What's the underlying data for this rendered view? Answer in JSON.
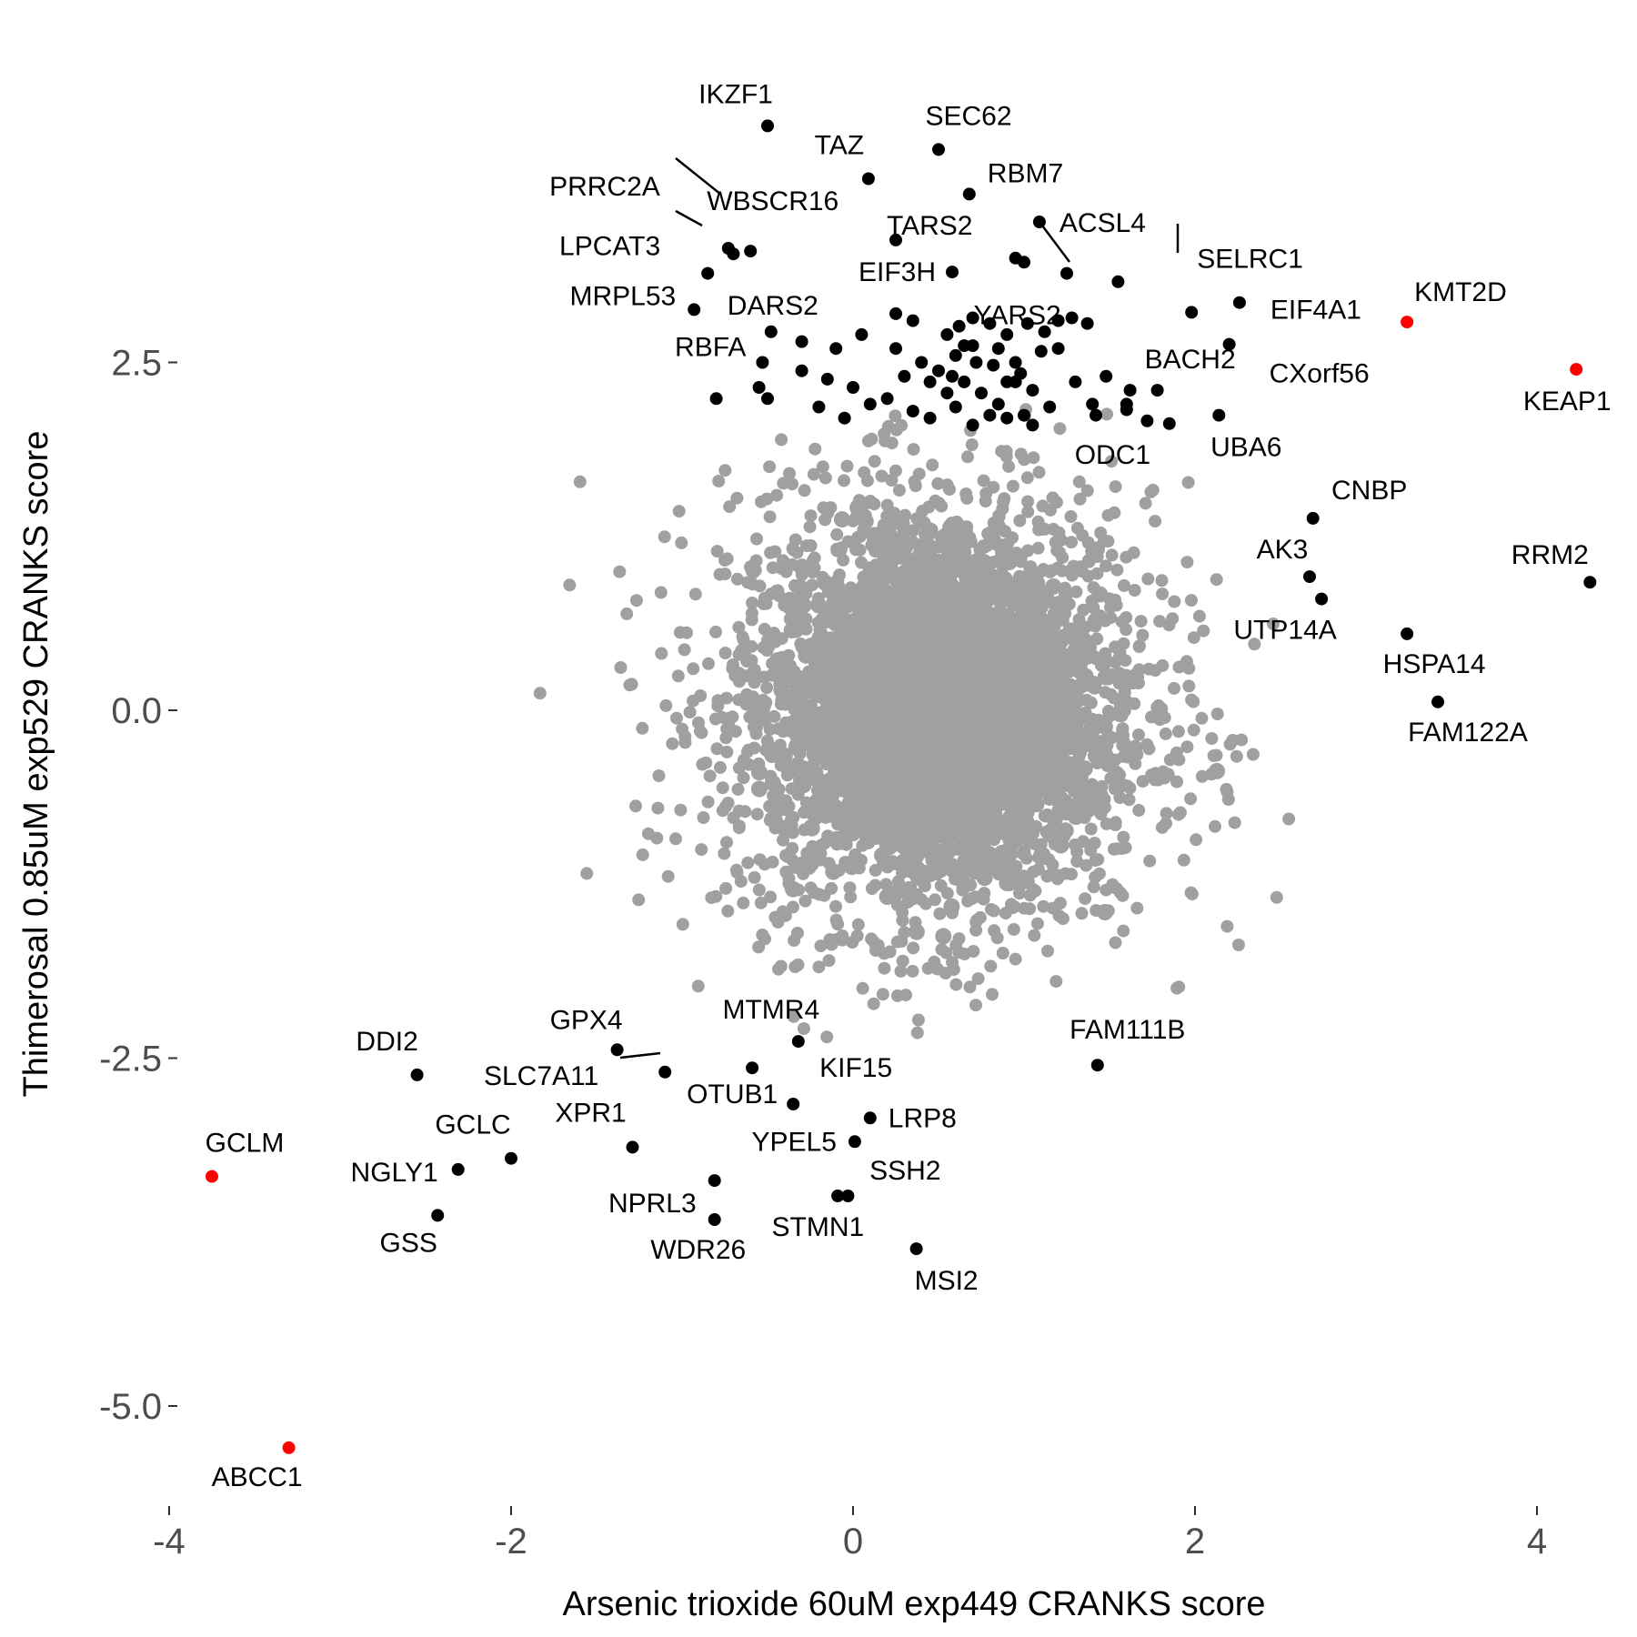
{
  "chart_data": {
    "type": "scatter",
    "xlabel": "Arsenic trioxide 60uM exp449 CRANKS score",
    "ylabel": "Thimerosal 0.85uM exp529 CRANKS score",
    "xlim": [
      -4.1,
      4.3
    ],
    "ylim": [
      -5.7,
      4.9
    ],
    "xticks": [
      {
        "value": -4,
        "label": "-4"
      },
      {
        "value": -2,
        "label": "-2"
      },
      {
        "value": 0,
        "label": "0"
      },
      {
        "value": 2,
        "label": "2"
      },
      {
        "value": 4,
        "label": "4"
      }
    ],
    "yticks": [
      {
        "value": 2.5,
        "label": "2.5"
      },
      {
        "value": 0,
        "label": "0.0"
      },
      {
        "value": -2.5,
        "label": "-2.5"
      },
      {
        "value": -5,
        "label": "-5.0"
      }
    ],
    "grid": false,
    "background_color": "#a0a0a0",
    "highlight_colors": {
      "default": "#000000",
      "red": "#ff0000"
    },
    "labeled_points": [
      {
        "label": "IKZF1",
        "x": -0.5,
        "y": 4.2,
        "color": "default"
      },
      {
        "label": "SEC62",
        "x": 0.5,
        "y": 4.03,
        "color": "default"
      },
      {
        "label": "TAZ",
        "x": 0.09,
        "y": 3.82,
        "color": "default"
      },
      {
        "label": "RBM7",
        "x": 0.68,
        "y": 3.71,
        "color": "default"
      },
      {
        "label": "PRRC2A",
        "x": -0.73,
        "y": 3.32,
        "color": "default"
      },
      {
        "label": "WBSCR16",
        "x": -0.6,
        "y": 3.3,
        "color": "default"
      },
      {
        "label": "ACSL4",
        "x": 1.09,
        "y": 3.51,
        "color": "default"
      },
      {
        "label": "TARS2",
        "x": 0.25,
        "y": 3.38,
        "color": "default"
      },
      {
        "label": "LPCAT3",
        "x": -0.85,
        "y": 3.14,
        "color": "default"
      },
      {
        "label": "SELRC1",
        "x": 1.98,
        "y": 2.86,
        "color": "default"
      },
      {
        "label": "EIF3H",
        "x": 0.58,
        "y": 3.15,
        "color": "default"
      },
      {
        "label": "YARS2",
        "x": 1.37,
        "y": 2.78,
        "color": "default"
      },
      {
        "label": "MRPL53",
        "x": -0.93,
        "y": 2.88,
        "color": "default"
      },
      {
        "label": "DARS2",
        "x": -0.48,
        "y": 2.72,
        "color": "default"
      },
      {
        "label": "EIF4A1",
        "x": 2.26,
        "y": 2.93,
        "color": "default"
      },
      {
        "label": "KMT2D",
        "x": 3.24,
        "y": 2.79,
        "color": "red"
      },
      {
        "label": "BACH2",
        "x": 1.78,
        "y": 2.3,
        "color": "default"
      },
      {
        "label": "CXorf56",
        "x": 2.2,
        "y": 2.63,
        "color": "default"
      },
      {
        "label": "RBFA",
        "x": -0.53,
        "y": 2.5,
        "color": "default"
      },
      {
        "label": "KEAP1",
        "x": 4.23,
        "y": 2.45,
        "color": "red"
      },
      {
        "label": "ODC1",
        "x": 1.72,
        "y": 2.08,
        "color": "default"
      },
      {
        "label": "UBA6",
        "x": 2.14,
        "y": 2.12,
        "color": "default"
      },
      {
        "label": "CNBP",
        "x": 2.69,
        "y": 1.38,
        "color": "default"
      },
      {
        "label": "AK3",
        "x": 2.67,
        "y": 0.96,
        "color": "default"
      },
      {
        "label": "RRM2",
        "x": 4.31,
        "y": 0.92,
        "color": "default"
      },
      {
        "label": "UTP14A",
        "x": 2.74,
        "y": 0.8,
        "color": "default"
      },
      {
        "label": "HSPA14",
        "x": 3.24,
        "y": 0.55,
        "color": "default"
      },
      {
        "label": "FAM122A",
        "x": 3.42,
        "y": 0.06,
        "color": "default"
      },
      {
        "label": "MTMR4",
        "x": -0.32,
        "y": -2.38,
        "color": "default"
      },
      {
        "label": "GPX4",
        "x": -1.38,
        "y": -2.44,
        "color": "default"
      },
      {
        "label": "FAM111B",
        "x": 1.43,
        "y": -2.55,
        "color": "default"
      },
      {
        "label": "DDI2",
        "x": -2.55,
        "y": -2.62,
        "color": "default"
      },
      {
        "label": "SLC7A11",
        "x": -1.1,
        "y": -2.6,
        "color": "default"
      },
      {
        "label": "KIF15",
        "x": -0.59,
        "y": -2.57,
        "color": "default"
      },
      {
        "label": "OTUB1",
        "x": -0.35,
        "y": -2.83,
        "color": "default"
      },
      {
        "label": "LRP8",
        "x": 0.1,
        "y": -2.93,
        "color": "default"
      },
      {
        "label": "GCLM",
        "x": -3.75,
        "y": -3.35,
        "color": "red"
      },
      {
        "label": "GCLC",
        "x": -2.0,
        "y": -3.22,
        "color": "default"
      },
      {
        "label": "XPR1",
        "x": -1.29,
        "y": -3.14,
        "color": "default"
      },
      {
        "label": "YPEL5",
        "x": 0.01,
        "y": -3.1,
        "color": "default"
      },
      {
        "label": "NGLY1",
        "x": -2.31,
        "y": -3.3,
        "color": "default"
      },
      {
        "label": "NPRL3",
        "x": -0.81,
        "y": -3.38,
        "color": "default"
      },
      {
        "label": "SSH2",
        "x": -0.09,
        "y": -3.49,
        "color": "default"
      },
      {
        "label": "GSS",
        "x": -2.43,
        "y": -3.63,
        "color": "default"
      },
      {
        "label": "WDR26",
        "x": -0.81,
        "y": -3.66,
        "color": "default"
      },
      {
        "label": "STMN1",
        "x": -0.03,
        "y": -3.49,
        "color": "default"
      },
      {
        "label": "MSI2",
        "x": 0.37,
        "y": -3.87,
        "color": "default"
      },
      {
        "label": "ABCC1",
        "x": -3.3,
        "y": -5.3,
        "color": "red"
      }
    ],
    "unlabeled_black_points": [
      [
        -0.7,
        3.28
      ],
      [
        0.95,
        3.25
      ],
      [
        1.0,
        3.22
      ],
      [
        1.25,
        3.14
      ],
      [
        1.55,
        3.08
      ],
      [
        0.25,
        2.85
      ],
      [
        0.35,
        2.8
      ],
      [
        0.55,
        2.7
      ],
      [
        0.62,
        2.76
      ],
      [
        0.7,
        2.82
      ],
      [
        0.8,
        2.78
      ],
      [
        0.9,
        2.7
      ],
      [
        1.02,
        2.78
      ],
      [
        1.12,
        2.72
      ],
      [
        1.2,
        2.8
      ],
      [
        1.28,
        2.82
      ],
      [
        -0.3,
        2.65
      ],
      [
        -0.1,
        2.6
      ],
      [
        0.05,
        2.7
      ],
      [
        0.25,
        2.6
      ],
      [
        0.4,
        2.5
      ],
      [
        0.5,
        2.44
      ],
      [
        0.6,
        2.55
      ],
      [
        0.7,
        2.62
      ],
      [
        0.82,
        2.48
      ],
      [
        0.9,
        2.36
      ],
      [
        0.98,
        2.42
      ],
      [
        1.1,
        2.58
      ],
      [
        1.2,
        2.6
      ],
      [
        -0.55,
        2.32
      ],
      [
        -0.3,
        2.44
      ],
      [
        -0.15,
        2.38
      ],
      [
        0.0,
        2.32
      ],
      [
        0.2,
        2.24
      ],
      [
        0.3,
        2.4
      ],
      [
        0.45,
        2.36
      ],
      [
        0.55,
        2.28
      ],
      [
        0.65,
        2.36
      ],
      [
        0.75,
        2.28
      ],
      [
        0.85,
        2.2
      ],
      [
        0.95,
        2.36
      ],
      [
        1.05,
        2.3
      ],
      [
        1.3,
        2.36
      ],
      [
        1.48,
        2.4
      ],
      [
        1.62,
        2.3
      ],
      [
        -0.8,
        2.24
      ],
      [
        -0.5,
        2.24
      ],
      [
        -0.2,
        2.18
      ],
      [
        0.1,
        2.2
      ],
      [
        0.35,
        2.15
      ],
      [
        0.6,
        2.18
      ],
      [
        0.8,
        2.12
      ],
      [
        1.0,
        2.12
      ],
      [
        1.15,
        2.18
      ],
      [
        1.4,
        2.2
      ],
      [
        1.6,
        2.16
      ],
      [
        -0.05,
        2.1
      ],
      [
        0.45,
        2.1
      ],
      [
        0.7,
        2.05
      ],
      [
        0.9,
        2.1
      ],
      [
        1.05,
        2.05
      ],
      [
        1.42,
        2.12
      ],
      [
        1.6,
        2.2
      ],
      [
        1.85,
        2.06
      ],
      [
        0.65,
        2.62
      ],
      [
        0.72,
        2.5
      ],
      [
        0.85,
        2.6
      ],
      [
        0.95,
        2.5
      ],
      [
        0.58,
        2.4
      ]
    ]
  }
}
